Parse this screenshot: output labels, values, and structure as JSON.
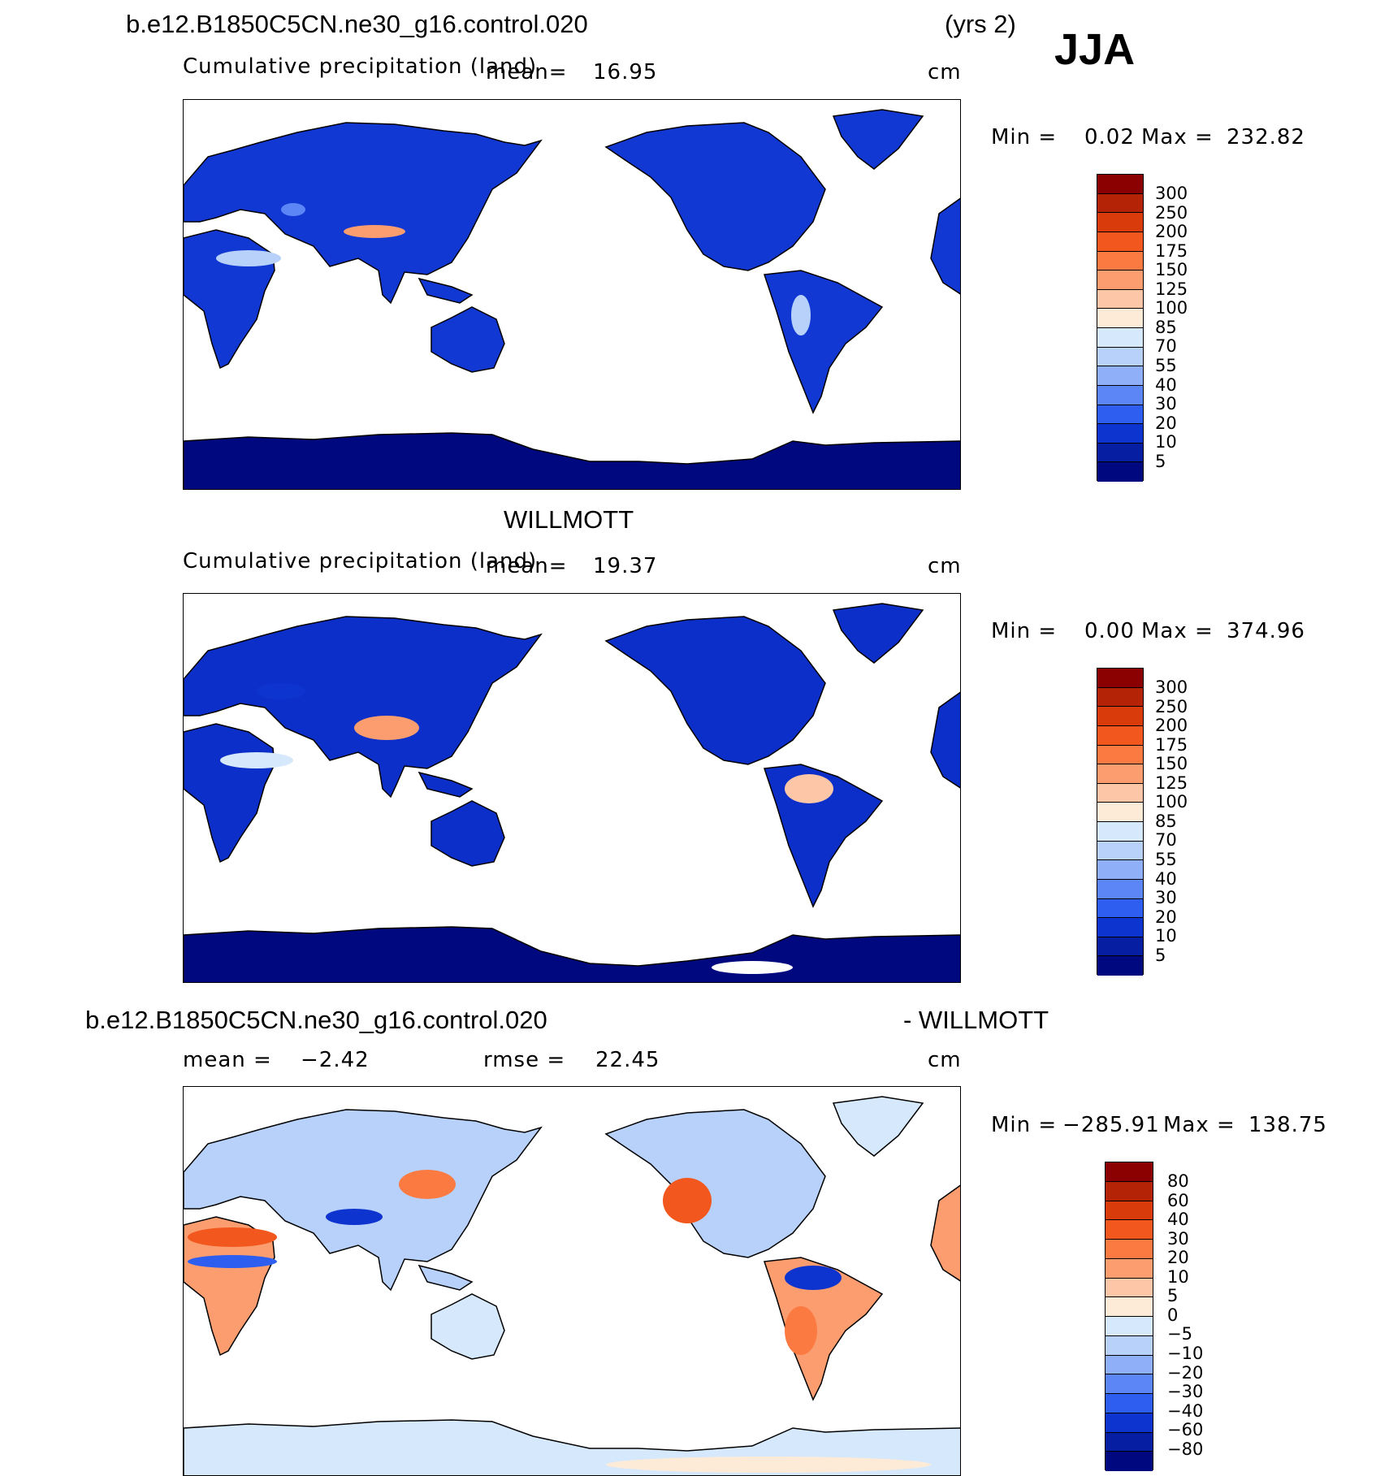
{
  "header": {
    "case_name": "b.e12.B1850C5CN.ne30_g16.control.020",
    "years": "(yrs 2)",
    "season": "JJA"
  },
  "panels": [
    {
      "title": "",
      "subtitle": "Cumulative precipitation (land)",
      "mean_label": "mean=",
      "mean_value": "16.95",
      "units": "cm",
      "min_label": "Min =",
      "min_value": "0.02",
      "max_label": "Max =",
      "max_value": "232.82",
      "colorbar_levels": [
        "300",
        "250",
        "200",
        "175",
        "150",
        "125",
        "100",
        "85",
        "70",
        "55",
        "40",
        "30",
        "20",
        "10",
        "5"
      ]
    },
    {
      "title": "WILLMOTT",
      "subtitle": "Cumulative precipitation (land)",
      "mean_label": "mean=",
      "mean_value": "19.37",
      "units": "cm",
      "min_label": "Min =",
      "min_value": "0.00",
      "max_label": "Max =",
      "max_value": "374.96",
      "colorbar_levels": [
        "300",
        "250",
        "200",
        "175",
        "150",
        "125",
        "100",
        "85",
        "70",
        "55",
        "40",
        "30",
        "20",
        "10",
        "5"
      ]
    },
    {
      "title_left": "b.e12.B1850C5CN.ne30_g16.control.020",
      "title_right": "- WILLMOTT",
      "mean_label": "mean =",
      "mean_value": "−2.42",
      "rmse_label": "rmse =",
      "rmse_value": "22.45",
      "units": "cm",
      "min_label": "Min =",
      "min_value": "−285.91",
      "max_label": "Max =",
      "max_value": "138.75",
      "colorbar_levels": [
        "80",
        "60",
        "40",
        "30",
        "20",
        "10",
        "5",
        "0",
        "−5",
        "−10",
        "−20",
        "−30",
        "−40",
        "−60",
        "−80"
      ]
    }
  ],
  "colors": {
    "abs_scale": [
      "#8b0000",
      "#b42305",
      "#d93b0b",
      "#f2581e",
      "#fb7a42",
      "#fb9d6f",
      "#fdc6a6",
      "#fdebd8",
      "#d6e8fb",
      "#b7d1fa",
      "#8fb0f9",
      "#5c86f6",
      "#2e5ef0",
      "#0e34cf",
      "#061ea1",
      "#00087f"
    ],
    "diff_scale": [
      "#8b0000",
      "#b42305",
      "#d93b0b",
      "#f2581e",
      "#fb7a42",
      "#fb9d6f",
      "#fdc6a6",
      "#fdebd8",
      "#d6e8fb",
      "#b7d1fa",
      "#8fb0f9",
      "#5c86f6",
      "#2e5ef0",
      "#0e34cf",
      "#061ea1",
      "#00087f"
    ],
    "land_model": "#1238d4",
    "land_obs": "#0b2fc8",
    "antarctica": "#00087f"
  }
}
